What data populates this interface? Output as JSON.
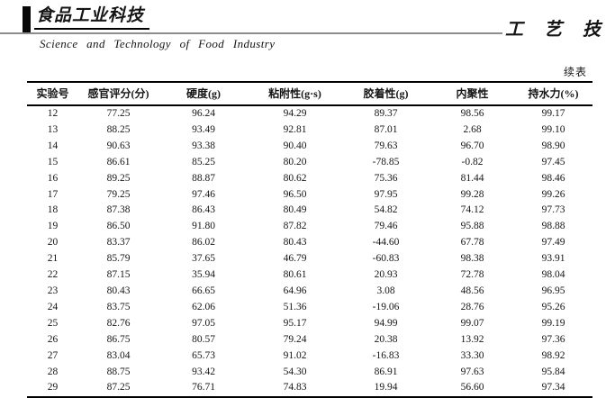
{
  "masthead": {
    "logo_cn": "食品工业科技",
    "name_en": "Science  and  Technology  of  Food  Industry",
    "section_cn": "工 艺 技 术"
  },
  "table": {
    "continued_label": "续表",
    "columns": [
      "实验号",
      "感官评分(分)",
      "硬度(g)",
      "粘附性(g·s)",
      "胶着性(g)",
      "内聚性",
      "持水力(%)"
    ],
    "rows": [
      [
        "12",
        "77.25",
        "96.24",
        "94.29",
        "89.37",
        "98.56",
        "99.17"
      ],
      [
        "13",
        "88.25",
        "93.49",
        "92.81",
        "87.01",
        "2.68",
        "99.10"
      ],
      [
        "14",
        "90.63",
        "93.38",
        "90.40",
        "79.63",
        "96.70",
        "98.90"
      ],
      [
        "15",
        "86.61",
        "85.25",
        "80.20",
        "-78.85",
        "-0.82",
        "97.45"
      ],
      [
        "16",
        "89.25",
        "88.87",
        "80.62",
        "75.36",
        "81.44",
        "98.46"
      ],
      [
        "17",
        "79.25",
        "97.46",
        "96.50",
        "97.95",
        "99.28",
        "99.26"
      ],
      [
        "18",
        "87.38",
        "86.43",
        "80.49",
        "54.82",
        "74.12",
        "97.73"
      ],
      [
        "19",
        "86.50",
        "91.80",
        "87.82",
        "79.46",
        "95.88",
        "98.88"
      ],
      [
        "20",
        "83.37",
        "86.02",
        "80.43",
        "-44.60",
        "67.78",
        "97.49"
      ],
      [
        "21",
        "85.79",
        "37.65",
        "46.79",
        "-60.83",
        "98.38",
        "93.91"
      ],
      [
        "22",
        "87.15",
        "35.94",
        "80.61",
        "20.93",
        "72.78",
        "98.04"
      ],
      [
        "23",
        "80.43",
        "66.65",
        "64.96",
        "3.08",
        "48.56",
        "96.95"
      ],
      [
        "24",
        "83.75",
        "62.06",
        "51.36",
        "-19.06",
        "28.76",
        "95.26"
      ],
      [
        "25",
        "82.76",
        "97.05",
        "95.17",
        "94.99",
        "99.07",
        "99.19"
      ],
      [
        "26",
        "86.75",
        "80.57",
        "79.24",
        "20.38",
        "13.92",
        "97.36"
      ],
      [
        "27",
        "83.04",
        "65.73",
        "91.02",
        "-16.83",
        "33.30",
        "98.92"
      ],
      [
        "28",
        "88.75",
        "93.42",
        "54.30",
        "86.91",
        "97.63",
        "95.84"
      ],
      [
        "29",
        "87.25",
        "76.71",
        "74.83",
        "19.94",
        "56.60",
        "97.34"
      ]
    ]
  },
  "colors": {
    "rule_gray": "#8d8d8d",
    "ink": "#151515"
  }
}
